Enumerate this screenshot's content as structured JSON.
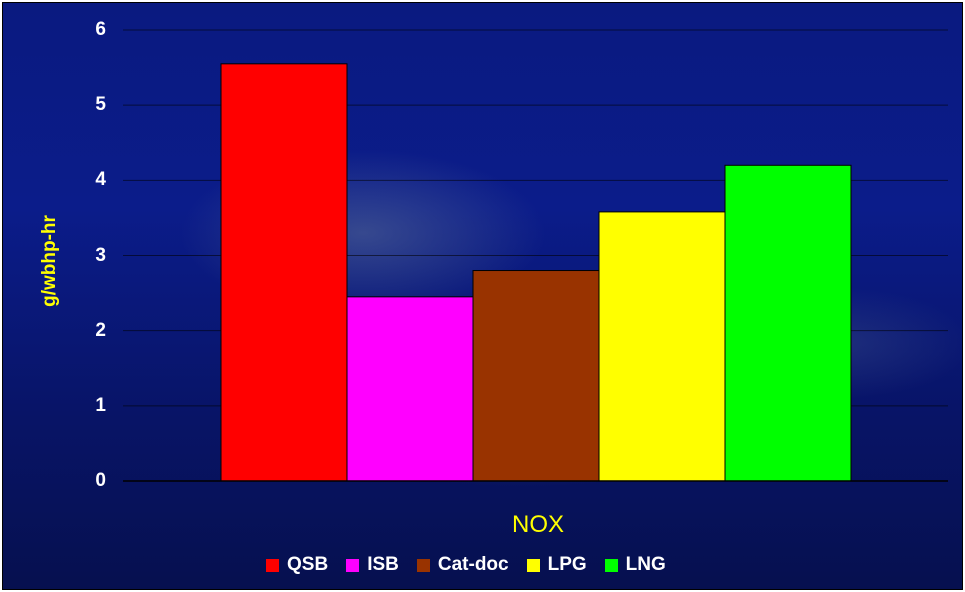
{
  "chart_data": {
    "type": "bar",
    "categories": [
      "NOX"
    ],
    "series": [
      {
        "name": "QSB",
        "values": [
          5.55
        ],
        "color": "#ff0000"
      },
      {
        "name": "ISB",
        "values": [
          2.45
        ],
        "color": "#ff00ff"
      },
      {
        "name": "Cat-doc",
        "values": [
          2.8
        ],
        "color": "#993300"
      },
      {
        "name": "LPG",
        "values": [
          3.58
        ],
        "color": "#ffff00"
      },
      {
        "name": "LNG",
        "values": [
          4.2
        ],
        "color": "#00ff00"
      }
    ],
    "title": "",
    "xlabel": "NOX",
    "ylabel": "g/wbhp-hr",
    "ylim": [
      0,
      6
    ],
    "yticks": [
      "0",
      "1",
      "2",
      "3",
      "4",
      "5",
      "6"
    ],
    "grid": true,
    "legend": "bottom"
  }
}
